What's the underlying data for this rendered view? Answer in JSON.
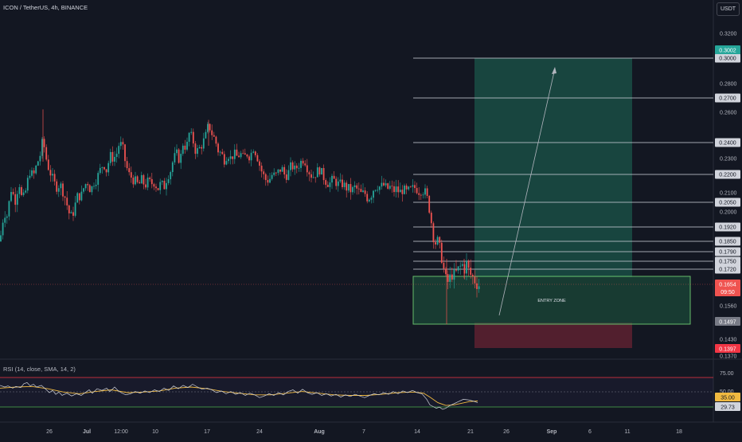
{
  "header": {
    "symbol_title": "ICON / TetherUS, 4h, BINANCE",
    "currency": "USDT"
  },
  "colors": {
    "background": "#131722",
    "up": "#26a69a",
    "down": "#ef5350",
    "target_zone": "#1a4a42",
    "stop_zone": "#5a2030",
    "entry_zone_border": "#66bb6a",
    "rsi_line": "#d1d4dc",
    "rsi_sma": "#f0b940",
    "rsi_upper_band": "#f23645",
    "rsi_lower_band": "#4caf50"
  },
  "chart_data": {
    "type": "candlestick",
    "symbol": "ICON / TetherUS",
    "interval": "4h",
    "exchange": "BINANCE",
    "ylim": [
      0.137,
      0.322
    ],
    "y_ticks": [
      "0.3200",
      "0.2800",
      "0.2600",
      "0.2300",
      "0.2100",
      "0.2000",
      "0.1560",
      "0.1430",
      "0.1370"
    ],
    "x_ticks": [
      "26",
      "Jul",
      "12:00",
      "10",
      "17",
      "24",
      "Aug",
      "7",
      "14",
      "21",
      "26",
      "Sep",
      "6",
      "11",
      "18"
    ],
    "horizontal_levels": [
      "0.3000",
      "0.2700",
      "0.2400",
      "0.2200",
      "0.2050",
      "0.1920",
      "0.1850",
      "0.1790",
      "0.1750",
      "0.1720"
    ],
    "price_labels": {
      "target": "0.3002",
      "last_price": "0.1654",
      "countdown": "09:50",
      "entry_bottom": "0.1497",
      "stop": "0.1397"
    },
    "annotations": {
      "entry_zone": "ENTRY ZONE"
    },
    "close_path": [
      [
        0,
        0.185
      ],
      [
        5,
        0.2
      ],
      [
        9,
        0.198
      ],
      [
        14,
        0.212
      ],
      [
        19,
        0.206
      ],
      [
        24,
        0.216
      ],
      [
        28,
        0.205
      ],
      [
        33,
        0.212
      ],
      [
        37,
        0.222
      ],
      [
        42,
        0.219
      ],
      [
        46,
        0.226
      ],
      [
        51,
        0.233
      ],
      [
        54,
        0.243
      ],
      [
        57,
        0.232
      ],
      [
        61,
        0.224
      ],
      [
        64,
        0.22
      ],
      [
        68,
        0.215
      ],
      [
        72,
        0.213
      ],
      [
        75,
        0.215
      ],
      [
        79,
        0.211
      ],
      [
        83,
        0.206
      ],
      [
        86,
        0.2
      ],
      [
        90,
        0.197
      ],
      [
        94,
        0.203
      ],
      [
        98,
        0.209
      ],
      [
        102,
        0.208
      ],
      [
        106,
        0.214
      ],
      [
        110,
        0.216
      ],
      [
        114,
        0.211
      ],
      [
        118,
        0.216
      ],
      [
        122,
        0.218
      ],
      [
        126,
        0.223
      ],
      [
        130,
        0.227
      ],
      [
        134,
        0.222
      ],
      [
        138,
        0.232
      ],
      [
        142,
        0.23
      ],
      [
        146,
        0.232
      ],
      [
        150,
        0.24
      ],
      [
        154,
        0.237
      ],
      [
        158,
        0.226
      ],
      [
        162,
        0.22
      ],
      [
        166,
        0.218
      ],
      [
        170,
        0.216
      ],
      [
        174,
        0.214
      ],
      [
        178,
        0.217
      ],
      [
        182,
        0.214
      ],
      [
        186,
        0.216
      ],
      [
        190,
        0.215
      ],
      [
        194,
        0.216
      ],
      [
        198,
        0.212
      ],
      [
        202,
        0.215
      ],
      [
        206,
        0.213
      ],
      [
        210,
        0.219
      ],
      [
        214,
        0.222
      ],
      [
        218,
        0.23
      ],
      [
        222,
        0.233
      ],
      [
        226,
        0.228
      ],
      [
        230,
        0.24
      ],
      [
        234,
        0.236
      ],
      [
        238,
        0.247
      ],
      [
        242,
        0.242
      ],
      [
        246,
        0.234
      ],
      [
        250,
        0.236
      ],
      [
        254,
        0.239
      ],
      [
        258,
        0.244
      ],
      [
        262,
        0.252
      ],
      [
        266,
        0.246
      ],
      [
        270,
        0.242
      ],
      [
        274,
        0.235
      ],
      [
        278,
        0.233
      ],
      [
        282,
        0.229
      ],
      [
        286,
        0.233
      ],
      [
        290,
        0.23
      ],
      [
        294,
        0.233
      ],
      [
        298,
        0.231
      ],
      [
        302,
        0.233
      ],
      [
        306,
        0.23
      ],
      [
        310,
        0.233
      ],
      [
        314,
        0.231
      ],
      [
        318,
        0.237
      ],
      [
        322,
        0.233
      ],
      [
        326,
        0.226
      ],
      [
        330,
        0.22
      ],
      [
        334,
        0.217
      ],
      [
        338,
        0.217
      ],
      [
        342,
        0.22
      ],
      [
        346,
        0.219
      ],
      [
        350,
        0.222
      ],
      [
        354,
        0.224
      ],
      [
        358,
        0.219
      ],
      [
        362,
        0.221
      ],
      [
        366,
        0.226
      ],
      [
        370,
        0.223
      ],
      [
        374,
        0.225
      ],
      [
        378,
        0.228
      ],
      [
        382,
        0.23
      ],
      [
        386,
        0.224
      ],
      [
        390,
        0.22
      ],
      [
        394,
        0.219
      ],
      [
        398,
        0.222
      ],
      [
        402,
        0.223
      ],
      [
        406,
        0.219
      ],
      [
        410,
        0.216
      ],
      [
        414,
        0.215
      ],
      [
        418,
        0.217
      ],
      [
        422,
        0.216
      ],
      [
        426,
        0.214
      ],
      [
        430,
        0.215
      ],
      [
        434,
        0.213
      ],
      [
        438,
        0.212
      ],
      [
        442,
        0.211
      ],
      [
        446,
        0.213
      ],
      [
        450,
        0.211
      ],
      [
        454,
        0.209
      ],
      [
        458,
        0.21
      ],
      [
        462,
        0.207
      ],
      [
        466,
        0.209
      ],
      [
        470,
        0.213
      ],
      [
        474,
        0.214
      ],
      [
        478,
        0.213
      ],
      [
        482,
        0.214
      ],
      [
        486,
        0.212
      ],
      [
        490,
        0.213
      ],
      [
        494,
        0.211
      ],
      [
        498,
        0.212
      ],
      [
        502,
        0.21
      ],
      [
        506,
        0.212
      ],
      [
        510,
        0.21
      ],
      [
        514,
        0.211
      ],
      [
        518,
        0.212
      ],
      [
        522,
        0.213
      ],
      [
        526,
        0.211
      ],
      [
        530,
        0.212
      ],
      [
        534,
        0.21
      ],
      [
        538,
        0.205
      ],
      [
        541,
        0.197
      ],
      [
        544,
        0.188
      ],
      [
        547,
        0.184
      ],
      [
        550,
        0.185
      ],
      [
        553,
        0.18
      ],
      [
        556,
        0.175
      ],
      [
        559,
        0.168
      ],
      [
        562,
        0.166
      ],
      [
        565,
        0.168
      ],
      [
        568,
        0.17
      ],
      [
        571,
        0.169
      ],
      [
        574,
        0.171
      ],
      [
        577,
        0.172
      ],
      [
        580,
        0.174
      ],
      [
        583,
        0.172
      ],
      [
        586,
        0.174
      ],
      [
        589,
        0.171
      ],
      [
        592,
        0.169
      ],
      [
        595,
        0.168
      ],
      [
        598,
        0.166
      ],
      [
        602,
        0.165
      ]
    ],
    "rsi": {
      "label": "RSI (14, close, SMA, 14, 2)",
      "length": 14,
      "smoothing_length": 14,
      "ylim": [
        0,
        100
      ],
      "y_ticks": [
        "75.00",
        "50.00"
      ],
      "last_rsi": "29.73",
      "last_sma": "35.00",
      "rsi_path": [
        [
          0,
          63
        ],
        [
          6,
          60
        ],
        [
          10,
          62
        ],
        [
          16,
          58
        ],
        [
          20,
          61
        ],
        [
          26,
          59
        ],
        [
          30,
          66
        ],
        [
          34,
          68
        ],
        [
          38,
          62
        ],
        [
          42,
          65
        ],
        [
          46,
          60
        ],
        [
          52,
          63
        ],
        [
          56,
          58
        ],
        [
          62,
          50
        ],
        [
          66,
          54
        ],
        [
          70,
          47
        ],
        [
          74,
          51
        ],
        [
          78,
          45
        ],
        [
          84,
          49
        ],
        [
          90,
          44
        ],
        [
          96,
          48
        ],
        [
          102,
          45
        ],
        [
          108,
          51
        ],
        [
          112,
          55
        ],
        [
          116,
          49
        ],
        [
          122,
          57
        ],
        [
          128,
          54
        ],
        [
          134,
          58
        ],
        [
          138,
          52
        ],
        [
          144,
          60
        ],
        [
          148,
          54
        ],
        [
          152,
          50
        ],
        [
          158,
          46
        ],
        [
          164,
          48
        ],
        [
          170,
          52
        ],
        [
          176,
          49
        ],
        [
          182,
          53
        ],
        [
          188,
          50
        ],
        [
          194,
          55
        ],
        [
          200,
          52
        ],
        [
          206,
          58
        ],
        [
          212,
          54
        ],
        [
          218,
          62
        ],
        [
          224,
          57
        ],
        [
          230,
          63
        ],
        [
          236,
          59
        ],
        [
          242,
          65
        ],
        [
          248,
          60
        ],
        [
          254,
          56
        ],
        [
          260,
          58
        ],
        [
          266,
          55
        ],
        [
          272,
          50
        ],
        [
          278,
          53
        ],
        [
          284,
          48
        ],
        [
          290,
          52
        ],
        [
          296,
          47
        ],
        [
          302,
          50
        ],
        [
          308,
          45
        ],
        [
          314,
          49
        ],
        [
          320,
          46
        ],
        [
          326,
          41
        ],
        [
          332,
          44
        ],
        [
          338,
          48
        ],
        [
          344,
          45
        ],
        [
          350,
          50
        ],
        [
          356,
          46
        ],
        [
          362,
          52
        ],
        [
          368,
          55
        ],
        [
          374,
          49
        ],
        [
          380,
          56
        ],
        [
          386,
          50
        ],
        [
          392,
          47
        ],
        [
          398,
          50
        ],
        [
          404,
          45
        ],
        [
          410,
          48
        ],
        [
          416,
          44
        ],
        [
          422,
          47
        ],
        [
          428,
          42
        ],
        [
          434,
          46
        ],
        [
          440,
          43
        ],
        [
          446,
          47
        ],
        [
          452,
          44
        ],
        [
          458,
          41
        ],
        [
          464,
          45
        ],
        [
          470,
          48
        ],
        [
          476,
          46
        ],
        [
          482,
          50
        ],
        [
          488,
          47
        ],
        [
          494,
          52
        ],
        [
          500,
          48
        ],
        [
          506,
          53
        ],
        [
          512,
          50
        ],
        [
          518,
          54
        ],
        [
          524,
          50
        ],
        [
          530,
          48
        ],
        [
          536,
          38
        ],
        [
          540,
          28
        ],
        [
          544,
          25
        ],
        [
          548,
          22
        ],
        [
          552,
          24
        ],
        [
          556,
          20
        ],
        [
          560,
          22
        ],
        [
          564,
          26
        ],
        [
          570,
          30
        ],
        [
          576,
          34
        ],
        [
          582,
          38
        ],
        [
          588,
          37
        ],
        [
          594,
          35
        ],
        [
          600,
          32
        ]
      ],
      "sma_path": [
        [
          0,
          58
        ],
        [
          20,
          60
        ],
        [
          40,
          61
        ],
        [
          60,
          57
        ],
        [
          80,
          51
        ],
        [
          100,
          48
        ],
        [
          120,
          52
        ],
        [
          140,
          55
        ],
        [
          160,
          50
        ],
        [
          180,
          51
        ],
        [
          200,
          53
        ],
        [
          220,
          58
        ],
        [
          240,
          60
        ],
        [
          260,
          57
        ],
        [
          280,
          52
        ],
        [
          300,
          49
        ],
        [
          320,
          46
        ],
        [
          340,
          46
        ],
        [
          360,
          49
        ],
        [
          380,
          52
        ],
        [
          400,
          49
        ],
        [
          420,
          46
        ],
        [
          440,
          45
        ],
        [
          460,
          45
        ],
        [
          480,
          47
        ],
        [
          500,
          50
        ],
        [
          520,
          51
        ],
        [
          532,
          49
        ],
        [
          540,
          42
        ],
        [
          550,
          32
        ],
        [
          560,
          27
        ],
        [
          570,
          28
        ],
        [
          580,
          31
        ],
        [
          590,
          34
        ],
        [
          600,
          35
        ]
      ]
    }
  }
}
